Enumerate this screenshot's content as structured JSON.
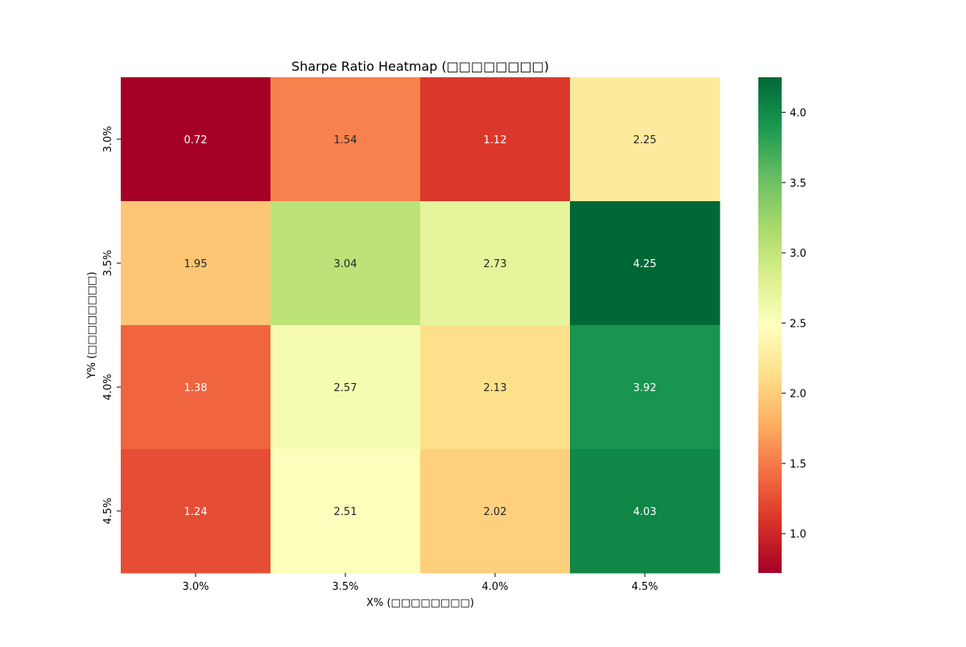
{
  "chart_data": {
    "type": "heatmap",
    "title": "Sharpe Ratio Heatmap (□□□□□□□□)",
    "xlabel": "X% (□□□□□□□□)",
    "ylabel": "Y% (□□□□□□□□)",
    "x_categories": [
      "3.0%",
      "3.5%",
      "4.0%",
      "4.5%"
    ],
    "y_categories": [
      "3.0%",
      "3.5%",
      "4.0%",
      "4.5%"
    ],
    "values": [
      [
        0.72,
        1.54,
        1.12,
        2.25
      ],
      [
        1.95,
        3.04,
        2.73,
        4.25
      ],
      [
        1.38,
        2.57,
        2.13,
        3.92
      ],
      [
        1.24,
        2.51,
        2.02,
        4.03
      ]
    ],
    "colormap": "RdYlGn",
    "colorbar": {
      "range": [
        0.72,
        4.25
      ],
      "ticks": [
        "1.0",
        "1.5",
        "2.0",
        "2.5",
        "3.0",
        "3.5",
        "4.0"
      ]
    },
    "annotations": true,
    "grid": false
  }
}
